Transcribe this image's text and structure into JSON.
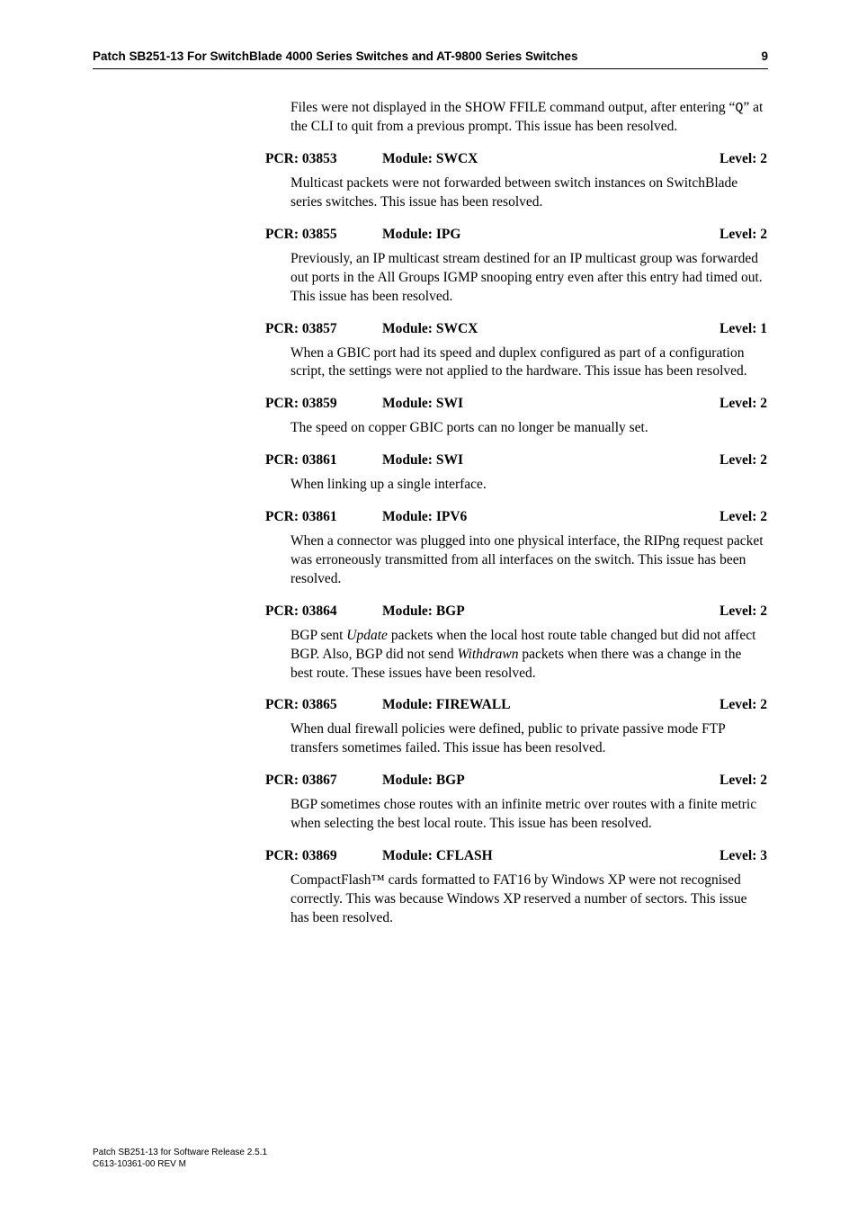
{
  "header": {
    "title": "Patch SB251-13 For SwitchBlade 4000 Series Switches and AT-9800 Series Switches",
    "page_number": "9"
  },
  "intro_para": "Files were not displayed in the SHOW FFILE command output, after entering “Q” at the CLI to quit from a previous prompt. This issue has been resolved.",
  "entries": [
    {
      "pcr": "PCR: 03853",
      "module": "Module: SWCX",
      "level": "Level: 2",
      "body": "Multicast packets were not forwarded between switch instances on SwitchBlade series switches. This issue has been resolved."
    },
    {
      "pcr": "PCR: 03855",
      "module": "Module: IPG",
      "level": "Level: 2",
      "body": "Previously, an IP multicast stream destined for an IP multicast group was forwarded out ports in the All Groups IGMP snooping entry even after this entry had timed out. This issue has been resolved."
    },
    {
      "pcr": "PCR: 03857",
      "module": "Module: SWCX",
      "level": "Level: 1",
      "body": "When a GBIC port had its speed and duplex configured as part of a configuration script, the settings were not applied to the hardware. This issue has been resolved."
    },
    {
      "pcr": "PCR: 03859",
      "module": "Module: SWI",
      "level": "Level: 2",
      "body": "The speed on copper GBIC ports can no longer be manually set."
    },
    {
      "pcr": "PCR: 03861",
      "module": "Module: SWI",
      "level": "Level: 2",
      "body": "When linking up a single interface."
    },
    {
      "pcr": "PCR: 03861",
      "module": "Module: IPV6",
      "level": "Level: 2",
      "body": "When a connector was plugged into one physical interface, the RIPng request packet was erroneously transmitted from all interfaces on the switch. This issue has been resolved."
    },
    {
      "pcr": "PCR: 03864",
      "module": "Module: BGP",
      "level": "Level: 2",
      "body_html": "BGP sent <em>Update</em> packets when the local host route table changed but did not affect BGP. Also, BGP did not send <em>Withdrawn</em> packets when there was a change in the best route. These issues have been resolved."
    },
    {
      "pcr": "PCR: 03865",
      "module": "Module: FIREWALL",
      "level": "Level: 2",
      "body": "When dual firewall policies were defined, public to private passive mode FTP transfers sometimes failed. This issue has been resolved."
    },
    {
      "pcr": "PCR: 03867",
      "module": "Module: BGP",
      "level": "Level: 2",
      "body": "BGP sometimes chose routes with an infinite metric over routes with a finite metric when selecting the best local route. This issue has been resolved."
    },
    {
      "pcr": "PCR: 03869",
      "module": "Module: CFLASH",
      "level": "Level: 3",
      "body": "CompactFlash™ cards formatted to FAT16 by Windows XP were not recognised correctly. This was because Windows XP reserved a number of sectors. This issue has been resolved."
    }
  ],
  "intro_q_char": "Q",
  "footer": {
    "line1": "Patch SB251-13 for Software Release 2.5.1",
    "line2": "C613-10361-00 REV M"
  }
}
